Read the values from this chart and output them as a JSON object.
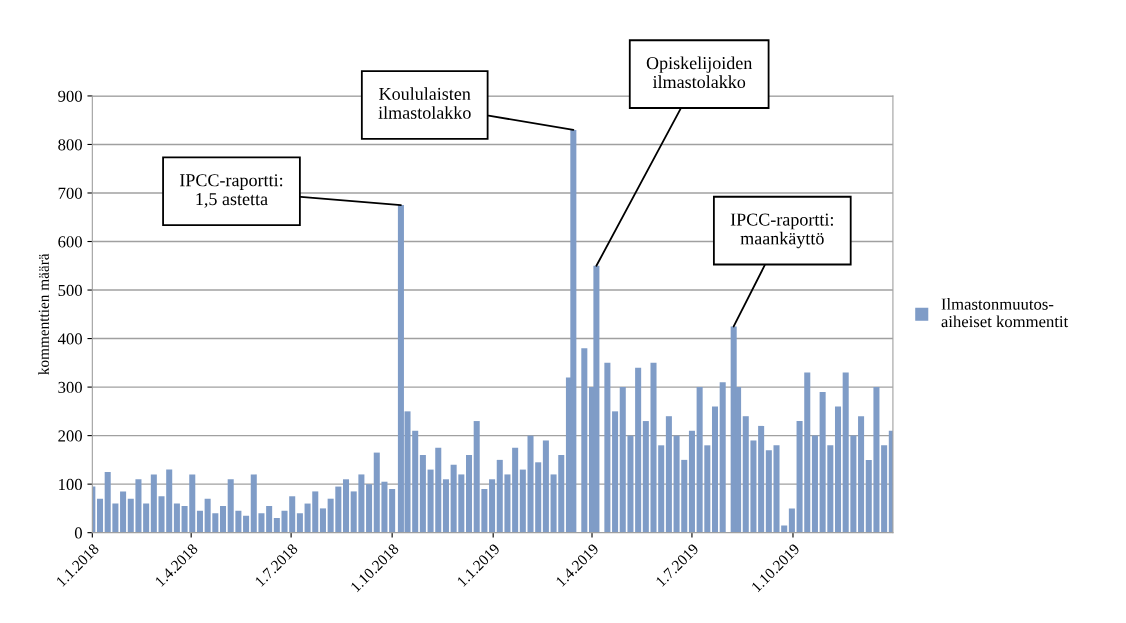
{
  "chart_data": {
    "type": "bar",
    "ylabel": "kommenttien määrä",
    "x": [
      "2018-01-01",
      "2018-01-08",
      "2018-01-15",
      "2018-01-22",
      "2018-01-29",
      "2018-02-05",
      "2018-02-12",
      "2018-02-19",
      "2018-02-26",
      "2018-03-05",
      "2018-03-12",
      "2018-03-19",
      "2018-03-26",
      "2018-04-02",
      "2018-04-09",
      "2018-04-16",
      "2018-04-23",
      "2018-04-30",
      "2018-05-07",
      "2018-05-14",
      "2018-05-21",
      "2018-05-28",
      "2018-06-04",
      "2018-06-11",
      "2018-06-18",
      "2018-06-25",
      "2018-07-02",
      "2018-07-09",
      "2018-07-16",
      "2018-07-23",
      "2018-07-30",
      "2018-08-06",
      "2018-08-13",
      "2018-08-20",
      "2018-08-27",
      "2018-09-03",
      "2018-09-10",
      "2018-09-17",
      "2018-09-24",
      "2018-10-01",
      "2018-10-09",
      "2018-10-15",
      "2018-10-22",
      "2018-10-29",
      "2018-11-05",
      "2018-11-12",
      "2018-11-19",
      "2018-11-26",
      "2018-12-03",
      "2018-12-10",
      "2018-12-17",
      "2018-12-24",
      "2018-12-31",
      "2019-01-07",
      "2019-01-14",
      "2019-01-21",
      "2019-01-28",
      "2019-02-04",
      "2019-02-11",
      "2019-02-18",
      "2019-02-25",
      "2019-03-04",
      "2019-03-11",
      "2019-03-15",
      "2019-03-25",
      "2019-04-01",
      "2019-04-05",
      "2019-04-15",
      "2019-04-22",
      "2019-04-29",
      "2019-05-06",
      "2019-05-13",
      "2019-05-20",
      "2019-05-27",
      "2019-06-03",
      "2019-06-10",
      "2019-06-17",
      "2019-06-24",
      "2019-07-01",
      "2019-07-08",
      "2019-07-15",
      "2019-07-22",
      "2019-07-29",
      "2019-08-08",
      "2019-08-12",
      "2019-08-19",
      "2019-08-26",
      "2019-09-02",
      "2019-09-09",
      "2019-09-16",
      "2019-09-23",
      "2019-09-30",
      "2019-10-07",
      "2019-10-14",
      "2019-10-21",
      "2019-10-28",
      "2019-11-04",
      "2019-11-11",
      "2019-11-18",
      "2019-11-25",
      "2019-12-02",
      "2019-12-09",
      "2019-12-16",
      "2019-12-23",
      "2019-12-30"
    ],
    "series": [
      {
        "name": "Ilmastonmuutos-\naiheiset kommentit",
        "color": "#7f9cc7",
        "values": [
          95,
          70,
          125,
          60,
          85,
          70,
          110,
          60,
          120,
          75,
          130,
          60,
          55,
          120,
          45,
          70,
          40,
          55,
          110,
          45,
          35,
          120,
          40,
          55,
          30,
          45,
          75,
          40,
          60,
          85,
          50,
          70,
          95,
          110,
          85,
          120,
          100,
          165,
          105,
          90,
          675,
          250,
          210,
          160,
          130,
          175,
          110,
          140,
          120,
          160,
          230,
          90,
          110,
          150,
          120,
          175,
          130,
          200,
          145,
          190,
          120,
          160,
          320,
          830,
          380,
          300,
          550,
          350,
          250,
          300,
          200,
          340,
          230,
          350,
          180,
          240,
          200,
          150,
          210,
          300,
          180,
          260,
          310,
          425,
          300,
          240,
          190,
          220,
          170,
          180,
          15,
          50,
          230,
          330,
          200,
          290,
          180,
          260,
          330,
          200,
          240,
          150,
          300,
          180,
          210
        ]
      }
    ],
    "xlim": [
      "2018-01-01",
      "2019-12-31"
    ],
    "xticks": [
      {
        "value": "2018-01-01",
        "label": "1.1.2018"
      },
      {
        "value": "2018-04-01",
        "label": "1.4.2018"
      },
      {
        "value": "2018-07-01",
        "label": "1.7.2018"
      },
      {
        "value": "2018-10-01",
        "label": "1.10.2018"
      },
      {
        "value": "2019-01-01",
        "label": "1.1.2019"
      },
      {
        "value": "2019-04-01",
        "label": "1.4.2019"
      },
      {
        "value": "2019-07-01",
        "label": "1.7.2019"
      },
      {
        "value": "2019-10-01",
        "label": "1.10.2019"
      }
    ],
    "ylim": [
      0,
      900
    ],
    "yticks": [
      0,
      100,
      200,
      300,
      400,
      500,
      600,
      700,
      800,
      900
    ],
    "grid": "y",
    "legend": "right",
    "annotations": [
      {
        "text": "IPCC-raportti:\n1,5 astetta",
        "x": "2018-10-09",
        "y": 675
      },
      {
        "text": "Koululaisten\nilmastolakko",
        "x": "2019-03-15",
        "y": 830
      },
      {
        "text": "Opiskelijoiden\nilmastolakko",
        "x": "2019-04-05",
        "y": 550
      },
      {
        "text": "IPCC-raportti:\nmaankäyttö",
        "x": "2019-08-08",
        "y": 425
      }
    ]
  }
}
